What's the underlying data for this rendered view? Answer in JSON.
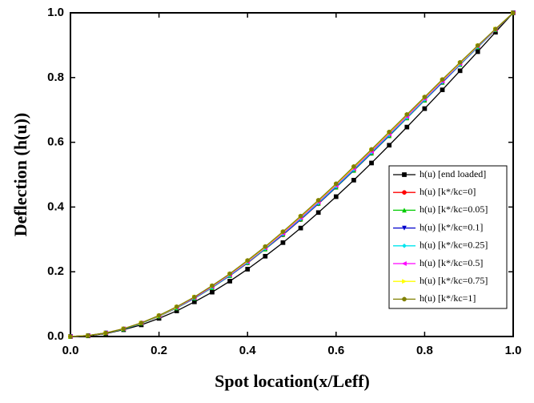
{
  "chart_data": {
    "type": "line",
    "x_label": "Spot location(x/Leff)",
    "y_label": "Deflection (h(u))",
    "x": [
      0,
      0.04,
      0.08,
      0.12,
      0.16,
      0.2,
      0.24,
      0.28,
      0.32,
      0.36,
      0.4,
      0.44,
      0.48,
      0.52,
      0.56,
      0.6,
      0.64,
      0.68,
      0.72,
      0.76,
      0.8,
      0.84,
      0.88,
      0.92,
      0.96,
      1
    ],
    "series": [
      {
        "name": "h(u) [end loaded]",
        "color": "#000000",
        "marker": "square",
        "values": [
          0,
          0.002,
          0.009,
          0.021,
          0.036,
          0.056,
          0.079,
          0.107,
          0.137,
          0.171,
          0.208,
          0.248,
          0.29,
          0.335,
          0.383,
          0.432,
          0.483,
          0.536,
          0.591,
          0.647,
          0.704,
          0.762,
          0.821,
          0.88,
          0.94,
          1
        ]
      },
      {
        "name": "h(u) [k*/kc=0]",
        "color": "#ff0000",
        "marker": "circle",
        "values": [
          0,
          0.003,
          0.011,
          0.023,
          0.041,
          0.062,
          0.088,
          0.118,
          0.151,
          0.188,
          0.227,
          0.27,
          0.314,
          0.361,
          0.41,
          0.461,
          0.513,
          0.566,
          0.62,
          0.675,
          0.73,
          0.785,
          0.84,
          0.894,
          0.947,
          1
        ]
      },
      {
        "name": "h(u) [k*/kc=0.05]",
        "color": "#00cc00",
        "marker": "triangle-up",
        "values": [
          0,
          0.003,
          0.011,
          0.023,
          0.041,
          0.063,
          0.088,
          0.118,
          0.151,
          0.188,
          0.228,
          0.27,
          0.315,
          0.362,
          0.411,
          0.461,
          0.513,
          0.566,
          0.62,
          0.675,
          0.73,
          0.785,
          0.84,
          0.894,
          0.948,
          1
        ]
      },
      {
        "name": "h(u) [k*/kc=0.1]",
        "color": "#0000cc",
        "marker": "triangle-down",
        "values": [
          0,
          0.003,
          0.011,
          0.023,
          0.041,
          0.063,
          0.089,
          0.118,
          0.152,
          0.188,
          0.228,
          0.271,
          0.315,
          0.362,
          0.411,
          0.462,
          0.514,
          0.567,
          0.621,
          0.676,
          0.731,
          0.785,
          0.84,
          0.894,
          0.948,
          1
        ]
      },
      {
        "name": "h(u) [k*/kc=0.25]",
        "color": "#00e5ee",
        "marker": "diamond",
        "values": [
          0,
          0.003,
          0.011,
          0.023,
          0.041,
          0.063,
          0.089,
          0.119,
          0.152,
          0.189,
          0.229,
          0.272,
          0.317,
          0.364,
          0.413,
          0.464,
          0.516,
          0.569,
          0.623,
          0.677,
          0.732,
          0.787,
          0.841,
          0.895,
          0.948,
          1
        ]
      },
      {
        "name": "h(u) [k*/kc=0.5]",
        "color": "#ff00ff",
        "marker": "triangle-left",
        "values": [
          0,
          0.003,
          0.011,
          0.024,
          0.042,
          0.064,
          0.09,
          0.12,
          0.154,
          0.191,
          0.231,
          0.274,
          0.319,
          0.367,
          0.416,
          0.467,
          0.519,
          0.572,
          0.626,
          0.68,
          0.735,
          0.789,
          0.843,
          0.897,
          0.949,
          1
        ]
      },
      {
        "name": "h(u) [k*/kc=0.75]",
        "color": "#ffff00",
        "marker": "triangle-right",
        "values": [
          0,
          0.003,
          0.011,
          0.024,
          0.042,
          0.064,
          0.091,
          0.122,
          0.156,
          0.193,
          0.233,
          0.276,
          0.322,
          0.37,
          0.419,
          0.47,
          0.522,
          0.576,
          0.629,
          0.684,
          0.738,
          0.792,
          0.845,
          0.898,
          0.95,
          1
        ]
      },
      {
        "name": "h(u) [k*/kc=1]",
        "color": "#808000",
        "marker": "circle",
        "values": [
          0,
          0.003,
          0.011,
          0.024,
          0.042,
          0.065,
          0.092,
          0.122,
          0.157,
          0.194,
          0.235,
          0.278,
          0.324,
          0.372,
          0.421,
          0.472,
          0.525,
          0.578,
          0.632,
          0.686,
          0.74,
          0.794,
          0.847,
          0.899,
          0.95,
          1
        ]
      }
    ],
    "xlim": [
      0,
      1
    ],
    "ylim": [
      0,
      1
    ],
    "xticks": [
      {
        "value": 0,
        "label": "0.0"
      },
      {
        "value": 0.2,
        "label": "0.2"
      },
      {
        "value": 0.4,
        "label": "0.4"
      },
      {
        "value": 0.6,
        "label": "0.6"
      },
      {
        "value": 0.8,
        "label": "0.8"
      },
      {
        "value": 1,
        "label": "1.0"
      }
    ],
    "yticks": [
      {
        "value": 0,
        "label": "0.0"
      },
      {
        "value": 0.2,
        "label": "0.2"
      },
      {
        "value": 0.4,
        "label": "0.4"
      },
      {
        "value": 0.6,
        "label": "0.6"
      },
      {
        "value": 0.8,
        "label": "0.8"
      },
      {
        "value": 1,
        "label": "1.0"
      }
    ],
    "legend": "right",
    "grid": false
  }
}
